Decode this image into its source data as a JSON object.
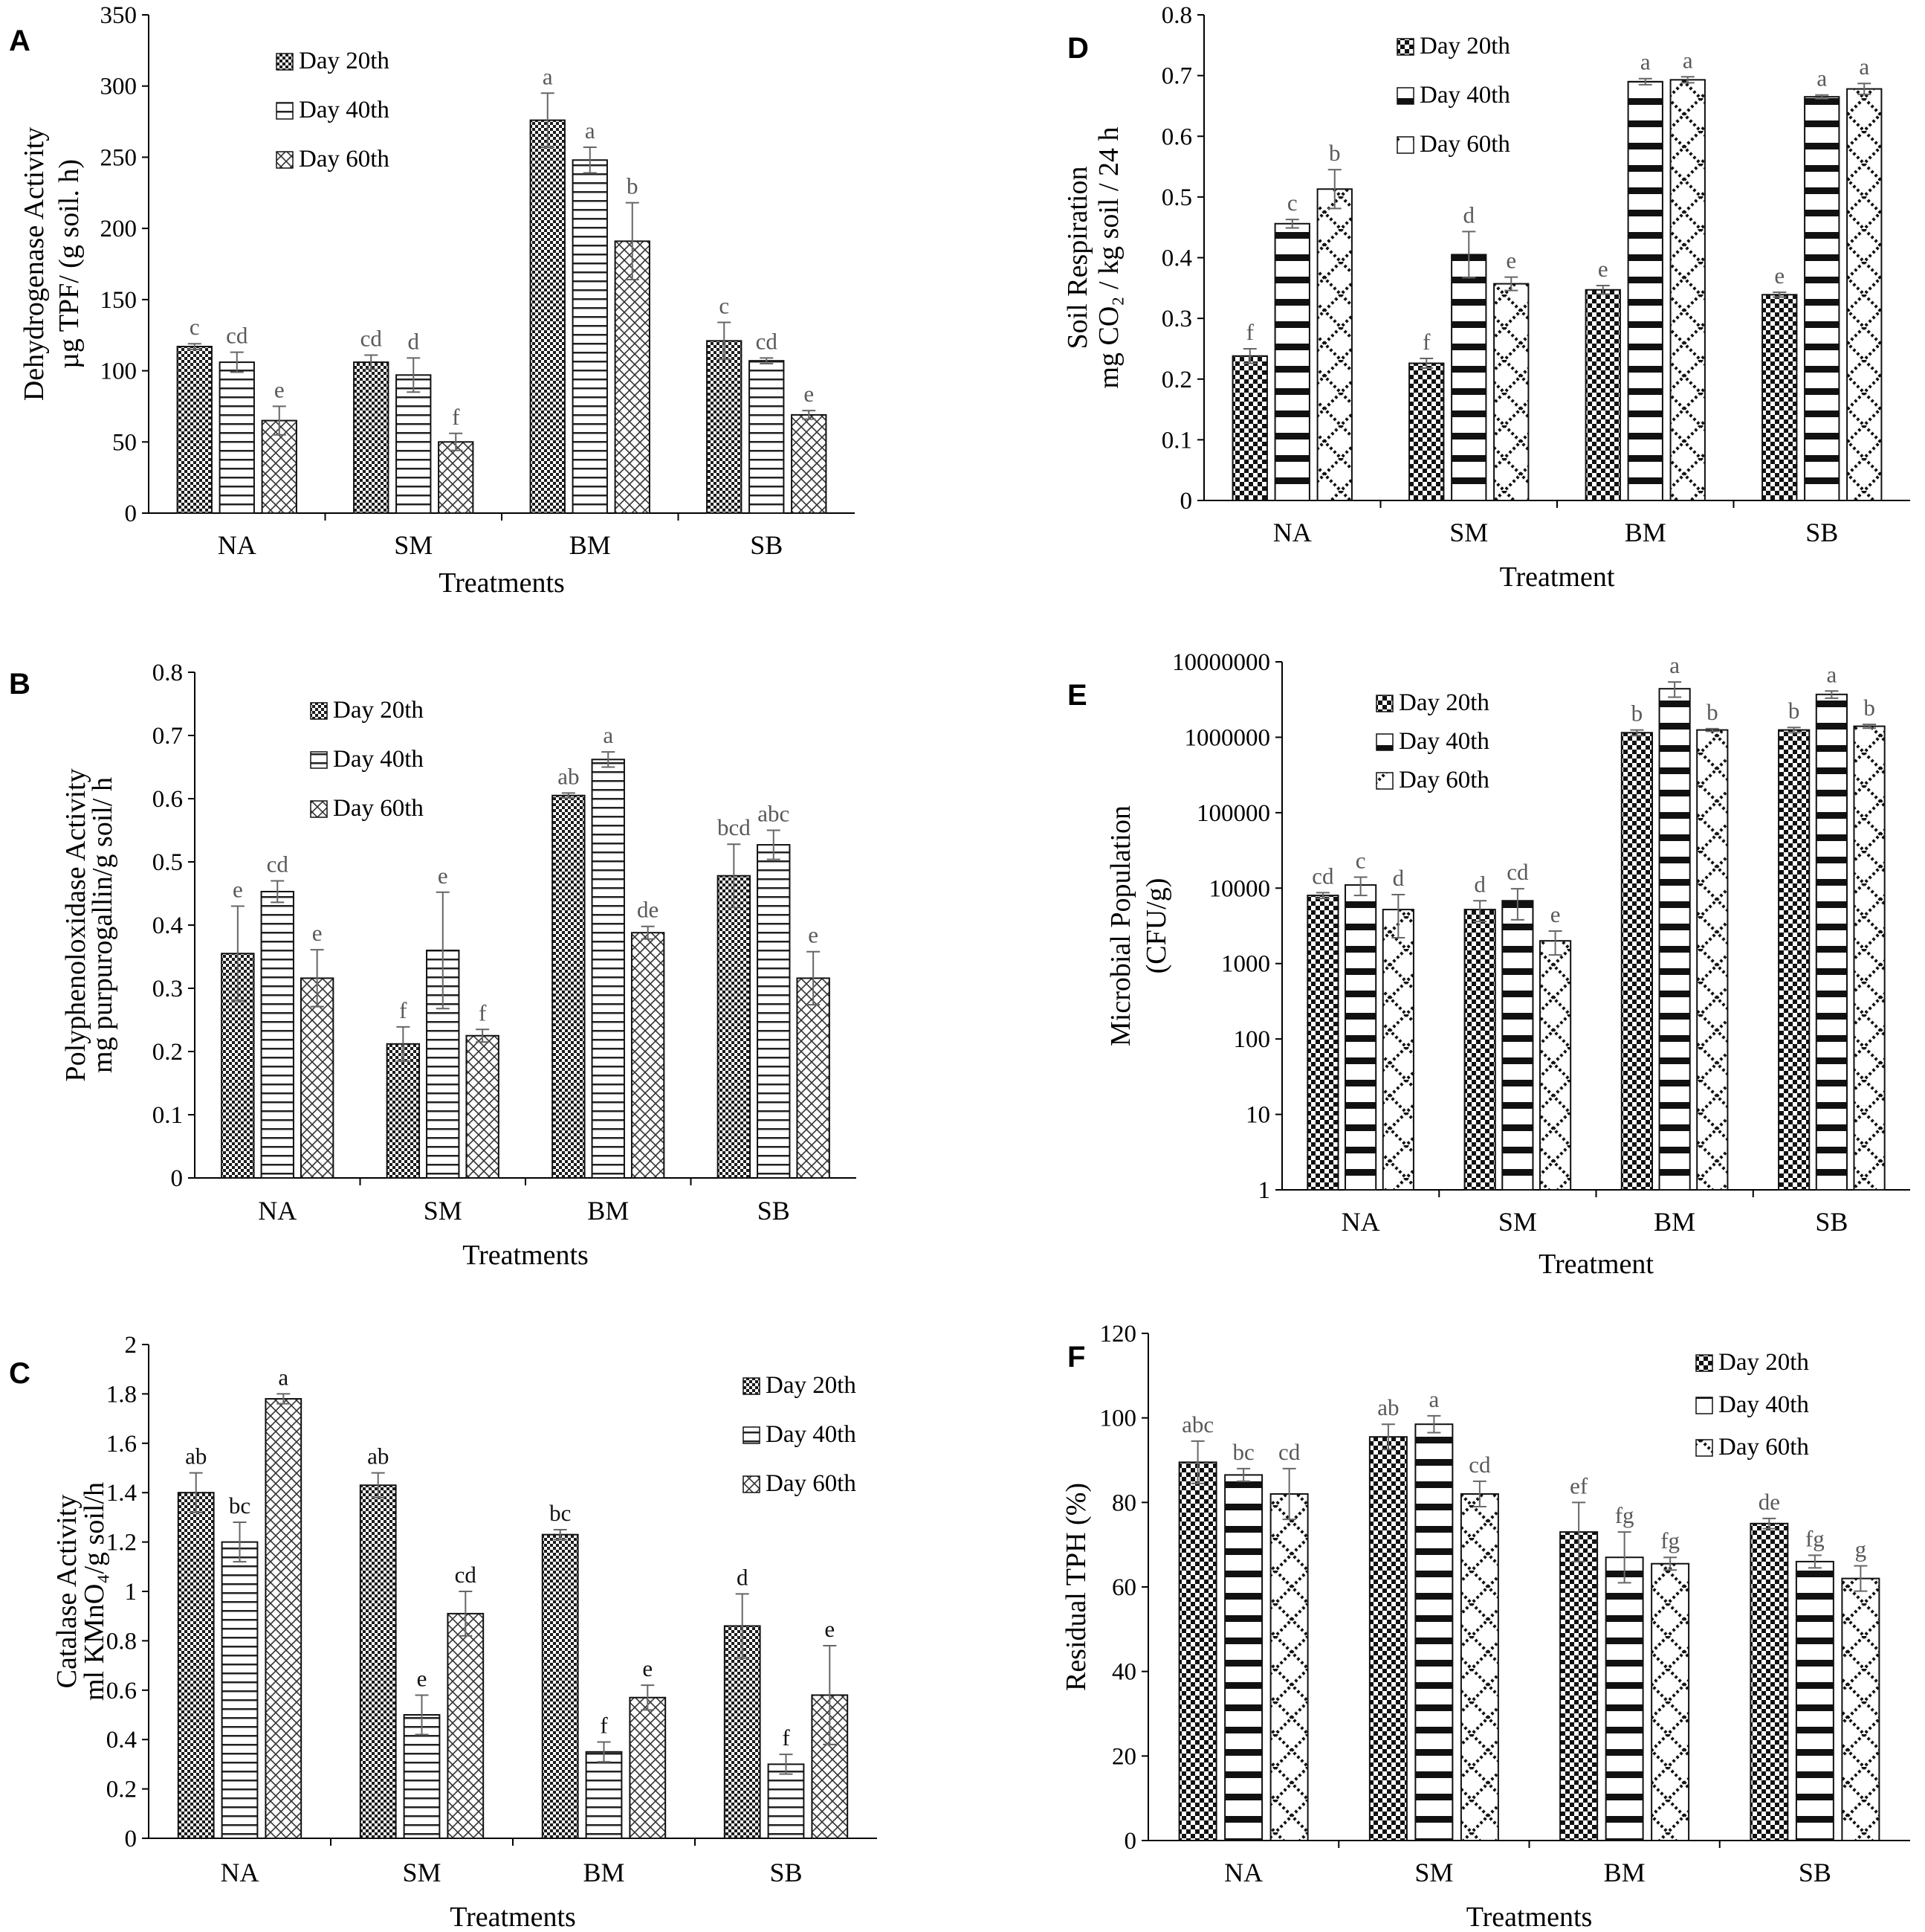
{
  "figure": {
    "series_names": [
      "Day 20th",
      "Day 40th",
      "Day 60th"
    ],
    "colors": {
      "bar_fill": "#ffffff",
      "pattern_ink": "#222222",
      "axis": "#000000",
      "error_bar": "#666666",
      "letters": "#595959"
    }
  },
  "chart_data": [
    {
      "id": "A",
      "panel_label": "A",
      "type": "bar",
      "title": "",
      "ylabel_lines": [
        "Dehydrogenase Activity",
        "µg TPF/ (g soil. h)"
      ],
      "xlabel": "Treatments",
      "categories": [
        "NA",
        "SM",
        "BM",
        "SB"
      ],
      "yscale": "linear",
      "ylim": [
        0,
        350
      ],
      "yticks": [
        0,
        50,
        100,
        150,
        200,
        250,
        300,
        350
      ],
      "ytick_labels": [
        "0",
        "50",
        "100",
        "150",
        "200",
        "250",
        "300",
        "350"
      ],
      "legend": "top-left",
      "series": [
        {
          "name": "Day 20th",
          "values": [
            117,
            106,
            276,
            121
          ],
          "errors": [
            2,
            5,
            19,
            13
          ],
          "letters": [
            "c",
            "cd",
            "a",
            "c"
          ]
        },
        {
          "name": "Day 40th",
          "values": [
            106,
            97,
            248,
            107
          ],
          "errors": [
            7,
            12,
            9,
            2
          ],
          "letters": [
            "cd",
            "d",
            "a",
            "cd"
          ]
        },
        {
          "name": "Day 60th",
          "values": [
            65,
            50,
            191,
            69
          ],
          "errors": [
            10,
            6,
            27,
            3
          ],
          "letters": [
            "e",
            "f",
            "b",
            "e"
          ]
        }
      ]
    },
    {
      "id": "B",
      "panel_label": "B",
      "type": "bar",
      "title": "",
      "ylabel_lines": [
        "Polyphenoloxidase Activity",
        "mg purpurogallin/g soil/ h"
      ],
      "xlabel": "Treatments",
      "categories": [
        "NA",
        "SM",
        "BM",
        "SB"
      ],
      "yscale": "linear",
      "ylim": [
        0,
        0.8
      ],
      "yticks": [
        0,
        0.1,
        0.2,
        0.3,
        0.4,
        0.5,
        0.6,
        0.7,
        0.8
      ],
      "ytick_labels": [
        "0",
        "0.1",
        "0.2",
        "0.3",
        "0.4",
        "0.5",
        "0.6",
        "0.7",
        "0.8"
      ],
      "legend": "top-left",
      "series": [
        {
          "name": "Day 20th",
          "values": [
            0.355,
            0.212,
            0.605,
            0.478
          ],
          "errors": [
            0.075,
            0.027,
            0.004,
            0.05
          ],
          "letters": [
            "e",
            "f",
            "ab",
            "bcd"
          ]
        },
        {
          "name": "Day 40th",
          "values": [
            0.453,
            0.36,
            0.662,
            0.527
          ],
          "errors": [
            0.017,
            0.092,
            0.012,
            0.023
          ],
          "letters": [
            "cd",
            "e",
            "a",
            "abc"
          ]
        },
        {
          "name": "Day 60th",
          "values": [
            0.316,
            0.225,
            0.388,
            0.316
          ],
          "errors": [
            0.045,
            0.01,
            0.01,
            0.042
          ],
          "letters": [
            "e",
            "f",
            "de",
            "e"
          ]
        }
      ]
    },
    {
      "id": "C",
      "panel_label": "C",
      "type": "bar",
      "title": "",
      "ylabel_lines": [
        "Catalase Activity",
        "ml KMnO₄/g soil/h"
      ],
      "xlabel": "Treatments",
      "categories": [
        "NA",
        "SM",
        "BM",
        "SB"
      ],
      "yscale": "linear",
      "ylim": [
        0,
        2
      ],
      "yticks": [
        0,
        0.2,
        0.4,
        0.6,
        0.8,
        1,
        1.2,
        1.4,
        1.6,
        1.8,
        2
      ],
      "ytick_labels": [
        "0",
        "0.2",
        "0.4",
        "0.6",
        "0.8",
        "1",
        "1.2",
        "1.4",
        "1.6",
        "1.8",
        "2"
      ],
      "legend": "top-right",
      "series": [
        {
          "name": "Day 20th",
          "values": [
            1.4,
            1.43,
            1.23,
            0.86
          ],
          "errors": [
            0.08,
            0.05,
            0.02,
            0.13
          ],
          "letters": [
            "ab",
            "ab",
            "bc",
            "d"
          ]
        },
        {
          "name": "Day 40th",
          "values": [
            1.2,
            0.5,
            0.35,
            0.3
          ],
          "errors": [
            0.08,
            0.08,
            0.04,
            0.04
          ],
          "letters": [
            "bc",
            "e",
            "f",
            "f"
          ]
        },
        {
          "name": "Day 60th",
          "values": [
            1.78,
            0.91,
            0.57,
            0.58
          ],
          "errors": [
            0.02,
            0.09,
            0.05,
            0.2
          ],
          "letters": [
            "a",
            "cd",
            "e",
            "e"
          ]
        }
      ]
    },
    {
      "id": "D",
      "panel_label": "D",
      "type": "bar",
      "title": "",
      "ylabel_lines": [
        "Soil Respiration",
        "mg CO₂ / kg soil / 24 h"
      ],
      "xlabel": "Treatment",
      "categories": [
        "NA",
        "SM",
        "BM",
        "SB"
      ],
      "yscale": "linear",
      "ylim": [
        0,
        0.8
      ],
      "yticks": [
        0,
        0.1,
        0.2,
        0.3,
        0.4,
        0.5,
        0.6,
        0.7,
        0.8
      ],
      "ytick_labels": [
        "0",
        "0.1",
        "0.2",
        "0.3",
        "0.4",
        "0.5",
        "0.6",
        "0.7",
        "0.8"
      ],
      "legend": "top-left",
      "series": [
        {
          "name": "Day 20th",
          "values": [
            0.238,
            0.226,
            0.347,
            0.339
          ],
          "errors": [
            0.012,
            0.008,
            0.007,
            0.004
          ],
          "letters": [
            "f",
            "f",
            "e",
            "e"
          ]
        },
        {
          "name": "Day 40th",
          "values": [
            0.456,
            0.405,
            0.69,
            0.665
          ],
          "errors": [
            0.007,
            0.038,
            0.005,
            0.003
          ],
          "letters": [
            "c",
            "d",
            "a",
            "a"
          ]
        },
        {
          "name": "Day 60th",
          "values": [
            0.513,
            0.357,
            0.693,
            0.678
          ],
          "errors": [
            0.032,
            0.011,
            0.005,
            0.009
          ],
          "letters": [
            "b",
            "e",
            "a",
            "a"
          ]
        }
      ]
    },
    {
      "id": "E",
      "panel_label": "E",
      "type": "bar",
      "title": "",
      "ylabel_lines": [
        "Microbial Population",
        "(CFU/g)"
      ],
      "xlabel": "Treatment",
      "categories": [
        "NA",
        "SM",
        "BM",
        "SB"
      ],
      "yscale": "log",
      "ylim": [
        1,
        10000000
      ],
      "yticks": [
        1,
        10,
        100,
        1000,
        10000,
        100000,
        1000000,
        10000000
      ],
      "ytick_labels": [
        "1",
        "10",
        "100",
        "1000",
        "10000",
        "100000",
        "1000000",
        "10000000"
      ],
      "legend": "top-left",
      "series": [
        {
          "name": "Day 20th",
          "values": [
            8000,
            5200,
            1150000,
            1250000
          ],
          "errors": [
            700,
            1600,
            100000,
            100000
          ],
          "letters": [
            "cd",
            "d",
            "b",
            "b"
          ]
        },
        {
          "name": "Day 40th",
          "values": [
            11000,
            6800,
            4400000,
            3700000
          ],
          "errors": [
            3000,
            3000,
            1000000,
            400000
          ],
          "letters": [
            "c",
            "cd",
            "a",
            "a"
          ]
        },
        {
          "name": "Day 60th",
          "values": [
            5200,
            2000,
            1250000,
            1400000
          ],
          "errors": [
            3000,
            700,
            50000,
            80000
          ],
          "letters": [
            "d",
            "e",
            "b",
            "b"
          ]
        }
      ]
    },
    {
      "id": "F",
      "panel_label": "F",
      "type": "bar",
      "title": "",
      "ylabel_lines": [
        "Residual TPH (%)"
      ],
      "xlabel": "Treatments",
      "categories": [
        "NA",
        "SM",
        "BM",
        "SB"
      ],
      "yscale": "linear",
      "ylim": [
        0,
        120
      ],
      "yticks": [
        0,
        20,
        40,
        60,
        80,
        100,
        120
      ],
      "ytick_labels": [
        "0",
        "20",
        "40",
        "60",
        "80",
        "100",
        "120"
      ],
      "legend": "top-right",
      "series": [
        {
          "name": "Day 20th",
          "values": [
            89.5,
            95.5,
            73,
            75
          ],
          "errors": [
            5,
            3,
            7,
            1.2
          ],
          "letters": [
            "abc",
            "ab",
            "ef",
            "de"
          ]
        },
        {
          "name": "Day 40th",
          "values": [
            86.5,
            98.5,
            67,
            66
          ],
          "errors": [
            1.5,
            2,
            6,
            1.5
          ],
          "letters": [
            "bc",
            "a",
            "fg",
            "fg"
          ]
        },
        {
          "name": "Day 60th",
          "values": [
            82,
            82,
            65.5,
            62
          ],
          "errors": [
            6,
            3,
            1.5,
            3
          ],
          "letters": [
            "cd",
            "cd",
            "fg",
            "g"
          ]
        }
      ]
    }
  ]
}
